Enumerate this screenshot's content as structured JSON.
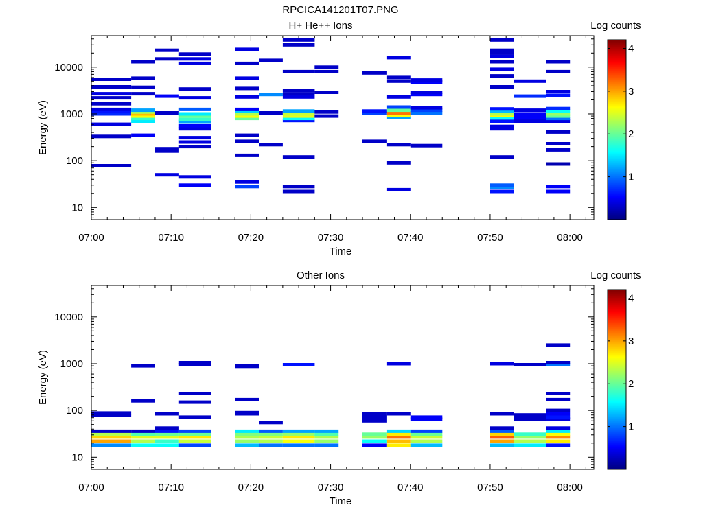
{
  "file_title": "RPCICA141201T07.PNG",
  "colorbar": {
    "label": "Log counts",
    "ticks": [
      "1",
      "2",
      "3",
      "4"
    ],
    "range": [
      0,
      4.2
    ],
    "colormap": [
      "#00007f",
      "#0000ff",
      "#007fff",
      "#00ffff",
      "#7fff7f",
      "#ffff00",
      "#ff7f00",
      "#ff0000",
      "#7f0000"
    ]
  },
  "chart_data": [
    {
      "type": "heatmap",
      "title": "H+ He++ Ions",
      "xlabel": "Time",
      "ylabel": "Energy (eV)",
      "xlim": [
        "07:00",
        "08:03"
      ],
      "ylim": [
        5.5,
        47000
      ],
      "yscale": "log",
      "x_ticks": [
        "07:00",
        "07:10",
        "07:20",
        "07:30",
        "07:40",
        "07:50",
        "08:00"
      ],
      "y_ticks": [
        "10",
        "100",
        "1000",
        "10000"
      ],
      "time_bins": [
        "07:00-07:05",
        "07:05-07:08",
        "07:08-07:11",
        "07:11-07:15",
        "07:18-07:21",
        "07:21-07:24",
        "07:24-07:28",
        "07:28-07:31",
        "07:34-07:37",
        "07:37-07:40",
        "07:40-07:44",
        "07:50-07:53",
        "07:53-07:57",
        "07:57-08:00"
      ],
      "cells": [
        {
          "bin": 0,
          "energies": [
            78,
            330,
            600,
            1000,
            1120,
            1250,
            1650,
            2200,
            2700,
            3800,
            5500
          ],
          "log_counts": [
            0.3,
            0.3,
            0.4,
            0.7,
            0.6,
            0.4,
            0.3,
            0.3,
            0.4,
            0.3,
            0.3
          ]
        },
        {
          "bin": 1,
          "energies": [
            350,
            700,
            800,
            900,
            1000,
            1100,
            1200,
            2700,
            3700,
            5800,
            13000
          ],
          "log_counts": [
            0.5,
            1.5,
            1.8,
            2.6,
            2.9,
            2.3,
            1.2,
            0.3,
            0.3,
            0.3,
            0.3
          ]
        },
        {
          "bin": 2,
          "energies": [
            50,
            160,
            180,
            1050,
            2400,
            15000,
            23000
          ],
          "log_counts": [
            0.4,
            0.3,
            0.3,
            0.3,
            0.5,
            0.3,
            0.3
          ]
        },
        {
          "bin": 3,
          "energies": [
            30,
            45,
            200,
            250,
            310,
            480,
            560,
            690,
            760,
            900,
            1000,
            1250,
            2200,
            3400,
            12000,
            15000,
            19000
          ],
          "log_counts": [
            0.5,
            0.4,
            0.3,
            0.4,
            0.4,
            0.4,
            0.5,
            1.2,
            1.8,
            2.0,
            1.5,
            0.9,
            0.4,
            0.3,
            0.4,
            0.4,
            0.3
          ]
        },
        {
          "bin": 4,
          "energies": [
            28,
            35,
            130,
            260,
            350,
            800,
            900,
            1000,
            1150,
            1250,
            2300,
            3500,
            5800,
            12000,
            24000
          ],
          "log_counts": [
            0.8,
            0.4,
            0.3,
            0.3,
            0.3,
            2.0,
            2.6,
            2.3,
            1.4,
            0.5,
            0.4,
            0.3,
            0.4,
            0.3,
            0.4
          ]
        },
        {
          "bin": 5,
          "energies": [
            220,
            1050,
            2600,
            14000
          ],
          "log_counts": [
            0.3,
            0.3,
            1.1,
            0.3
          ]
        },
        {
          "bin": 6,
          "energies": [
            22,
            28,
            120,
            720,
            800,
            900,
            1000,
            1150,
            2300,
            2700,
            3200,
            8000,
            30000,
            38000
          ],
          "log_counts": [
            0.3,
            0.3,
            0.3,
            0.6,
            1.6,
            2.5,
            2.4,
            1.2,
            0.4,
            0.3,
            0.3,
            0.3,
            0.3,
            0.3
          ]
        },
        {
          "bin": 7,
          "energies": [
            900,
            1100,
            2900,
            8000,
            10000
          ],
          "log_counts": [
            0.3,
            0.3,
            0.3,
            0.3,
            0.3
          ]
        },
        {
          "bin": 8,
          "energies": [
            260,
            1050,
            1150,
            7500
          ],
          "log_counts": [
            0.3,
            0.8,
            0.6,
            0.3
          ]
        },
        {
          "bin": 9,
          "energies": [
            24,
            90,
            220,
            850,
            950,
            1050,
            1200,
            1400,
            2300,
            5000,
            6000,
            16000
          ],
          "log_counts": [
            0.4,
            0.3,
            0.3,
            1.2,
            2.6,
            3.2,
            2.0,
            0.8,
            0.4,
            0.3,
            0.3,
            0.4
          ]
        },
        {
          "bin": 10,
          "energies": [
            210,
            1050,
            1200,
            1350,
            2600,
            2900,
            4800,
            5300
          ],
          "log_counts": [
            0.3,
            1.0,
            0.8,
            0.4,
            0.5,
            0.4,
            0.5,
            0.4
          ]
        },
        {
          "bin": 11,
          "energies": [
            22,
            27,
            30,
            120,
            480,
            540,
            700,
            820,
            920,
            1000,
            1150,
            1280,
            3800,
            6500,
            9000,
            13000,
            17000,
            20000,
            23000,
            38000
          ],
          "log_counts": [
            0.6,
            1.1,
            0.9,
            0.3,
            0.4,
            0.4,
            0.6,
            1.6,
            2.6,
            2.3,
            1.3,
            0.6,
            0.3,
            0.3,
            0.4,
            0.3,
            0.4,
            0.3,
            0.3,
            0.3
          ]
        },
        {
          "bin": 12,
          "energies": [
            700,
            850,
            1000,
            1200,
            2400,
            5000
          ],
          "log_counts": [
            0.4,
            0.5,
            0.5,
            0.4,
            0.7,
            0.4
          ]
        },
        {
          "bin": 13,
          "energies": [
            22,
            28,
            85,
            170,
            230,
            410,
            700,
            800,
            900,
            1000,
            1150,
            1300,
            2500,
            3000,
            8000,
            13000
          ],
          "log_counts": [
            0.5,
            0.5,
            0.2,
            0.3,
            0.3,
            0.3,
            0.4,
            1.0,
            2.0,
            2.2,
            1.6,
            0.7,
            0.6,
            0.4,
            0.3,
            0.3
          ]
        }
      ]
    },
    {
      "type": "heatmap",
      "title": "Other Ions",
      "xlabel": "Time",
      "ylabel": "Energy (eV)",
      "xlim": [
        "07:00",
        "08:03"
      ],
      "ylim": [
        5.5,
        47000
      ],
      "yscale": "log",
      "x_ticks": [
        "07:00",
        "07:10",
        "07:20",
        "07:30",
        "07:40",
        "07:50",
        "08:00"
      ],
      "y_ticks": [
        "10",
        "100",
        "1000",
        "10000"
      ],
      "time_bins": [
        "07:00-07:05",
        "07:05-07:08",
        "07:08-07:11",
        "07:11-07:15",
        "07:18-07:21",
        "07:21-07:24",
        "07:24-07:28",
        "07:28-07:31",
        "07:34-07:37",
        "07:37-07:40",
        "07:40-07:44",
        "07:50-07:53",
        "07:53-07:57",
        "07:57-08:00"
      ],
      "cells": [
        {
          "bin": 0,
          "energies": [
            18,
            22,
            27,
            31,
            36,
            78,
            88
          ],
          "log_counts": [
            1.1,
            3.0,
            2.8,
            2.3,
            0.3,
            0.3,
            0.3
          ]
        },
        {
          "bin": 1,
          "energies": [
            18,
            22,
            27,
            31,
            36,
            160,
            900
          ],
          "log_counts": [
            1.6,
            2.3,
            2.5,
            1.9,
            0.3,
            0.3,
            0.3
          ]
        },
        {
          "bin": 2,
          "energies": [
            18,
            22,
            27,
            31,
            36,
            42,
            85
          ],
          "log_counts": [
            1.6,
            1.8,
            2.5,
            2.0,
            0.6,
            0.3,
            0.3
          ]
        },
        {
          "bin": 3,
          "energies": [
            18,
            22,
            27,
            31,
            36,
            72,
            150,
            230,
            950,
            1050
          ],
          "log_counts": [
            0.8,
            2.4,
            2.7,
            2.0,
            0.8,
            0.3,
            0.3,
            0.3,
            0.3,
            0.3
          ]
        },
        {
          "bin": 4,
          "energies": [
            18,
            22,
            27,
            31,
            36,
            85,
            90,
            170,
            850,
            900
          ],
          "log_counts": [
            1.3,
            2.2,
            2.3,
            2.1,
            1.5,
            0.3,
            0.3,
            0.3,
            0.3,
            0.3
          ]
        },
        {
          "bin": 5,
          "energies": [
            18,
            22,
            27,
            31,
            36,
            55
          ],
          "log_counts": [
            1.0,
            2.3,
            2.4,
            2.1,
            0.9,
            0.3
          ]
        },
        {
          "bin": 6,
          "energies": [
            18,
            22,
            27,
            31,
            36,
            950
          ],
          "log_counts": [
            1.0,
            2.6,
            2.7,
            2.2,
            1.2,
            0.6
          ]
        },
        {
          "bin": 7,
          "energies": [
            18,
            22,
            27,
            31,
            36
          ],
          "log_counts": [
            1.0,
            2.2,
            2.3,
            1.9,
            1.2
          ]
        },
        {
          "bin": 8,
          "energies": [
            18,
            22,
            27,
            31,
            60,
            72,
            85
          ],
          "log_counts": [
            0.5,
            1.6,
            2.2,
            2.0,
            0.3,
            0.3,
            0.3
          ]
        },
        {
          "bin": 9,
          "energies": [
            18,
            22,
            27,
            31,
            36,
            85,
            1000
          ],
          "log_counts": [
            2.7,
            2.9,
            3.2,
            2.7,
            1.4,
            0.3,
            0.4
          ]
        },
        {
          "bin": 10,
          "energies": [
            18,
            22,
            27,
            31,
            36,
            65,
            72
          ],
          "log_counts": [
            1.3,
            2.3,
            2.4,
            2.0,
            0.8,
            0.5,
            0.5
          ]
        },
        {
          "bin": 11,
          "energies": [
            18,
            22,
            27,
            31,
            36,
            42,
            85,
            1000
          ],
          "log_counts": [
            1.3,
            3.0,
            3.3,
            2.8,
            0.9,
            0.3,
            0.3,
            0.4
          ]
        },
        {
          "bin": 12,
          "energies": [
            18,
            22,
            27,
            31,
            65,
            72,
            80,
            950
          ],
          "log_counts": [
            1.5,
            2.3,
            2.2,
            1.8,
            0.3,
            0.3,
            0.3,
            0.3
          ]
        },
        {
          "bin": 13,
          "energies": [
            18,
            22,
            27,
            31,
            36,
            42,
            65,
            72,
            85,
            100,
            170,
            230,
            950,
            1050,
            2500
          ],
          "log_counts": [
            0.6,
            2.7,
            3.1,
            2.6,
            1.5,
            0.4,
            0.4,
            0.6,
            0.5,
            0.3,
            0.3,
            0.3,
            1.0,
            0.3,
            0.3
          ]
        }
      ]
    }
  ]
}
